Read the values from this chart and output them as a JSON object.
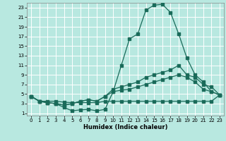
{
  "title": "",
  "xlabel": "Humidex (Indice chaleur)",
  "bg_color": "#b8e8e0",
  "line_color": "#1a6b5a",
  "grid_color": "#ffffff",
  "xlim": [
    -0.5,
    23.5
  ],
  "ylim": [
    0.5,
    24.0
  ],
  "xticks": [
    0,
    1,
    2,
    3,
    4,
    5,
    6,
    7,
    8,
    9,
    10,
    11,
    12,
    13,
    14,
    15,
    16,
    17,
    18,
    19,
    20,
    21,
    22,
    23
  ],
  "yticks": [
    1,
    3,
    5,
    7,
    9,
    11,
    13,
    15,
    17,
    19,
    21,
    23
  ],
  "line1_x": [
    0,
    1,
    2,
    3,
    4,
    5,
    6,
    7,
    8,
    9,
    10,
    11,
    12,
    13,
    14,
    15,
    16,
    17,
    18,
    19,
    20,
    21,
    22,
    23
  ],
  "line1_y": [
    4.5,
    3.5,
    3.2,
    3.0,
    2.2,
    1.5,
    1.7,
    1.8,
    1.5,
    1.8,
    5.5,
    11.0,
    16.5,
    17.5,
    22.5,
    23.5,
    23.7,
    22.0,
    17.5,
    12.5,
    9.0,
    7.5,
    5.5,
    4.8
  ],
  "line2_x": [
    0,
    1,
    2,
    3,
    4,
    5,
    6,
    7,
    8,
    9,
    10,
    11,
    12,
    13,
    14,
    15,
    16,
    17,
    18,
    19,
    20,
    21,
    22,
    23
  ],
  "line2_y": [
    4.5,
    3.5,
    3.2,
    3.0,
    2.7,
    3.0,
    3.5,
    3.8,
    3.5,
    4.5,
    6.0,
    6.5,
    7.0,
    7.5,
    8.5,
    9.0,
    9.5,
    10.0,
    11.0,
    9.0,
    8.5,
    7.0,
    6.5,
    4.8
  ],
  "line3_x": [
    0,
    1,
    2,
    3,
    4,
    5,
    6,
    7,
    8,
    9,
    10,
    11,
    12,
    13,
    14,
    15,
    16,
    17,
    18,
    19,
    20,
    21,
    22,
    23
  ],
  "line3_y": [
    4.5,
    3.5,
    3.2,
    3.0,
    2.7,
    3.0,
    3.5,
    3.8,
    3.5,
    4.5,
    5.5,
    5.8,
    6.0,
    6.5,
    7.0,
    7.5,
    8.0,
    8.5,
    9.0,
    8.5,
    7.5,
    6.0,
    5.5,
    4.8
  ],
  "line4_x": [
    0,
    1,
    2,
    3,
    4,
    5,
    6,
    7,
    8,
    9,
    10,
    11,
    12,
    13,
    14,
    15,
    16,
    17,
    18,
    19,
    20,
    21,
    22,
    23
  ],
  "line4_y": [
    4.5,
    3.5,
    3.5,
    3.5,
    3.3,
    3.2,
    3.2,
    3.2,
    3.2,
    3.5,
    3.5,
    3.5,
    3.5,
    3.5,
    3.5,
    3.5,
    3.5,
    3.5,
    3.5,
    3.5,
    3.5,
    3.5,
    3.5,
    4.8
  ]
}
